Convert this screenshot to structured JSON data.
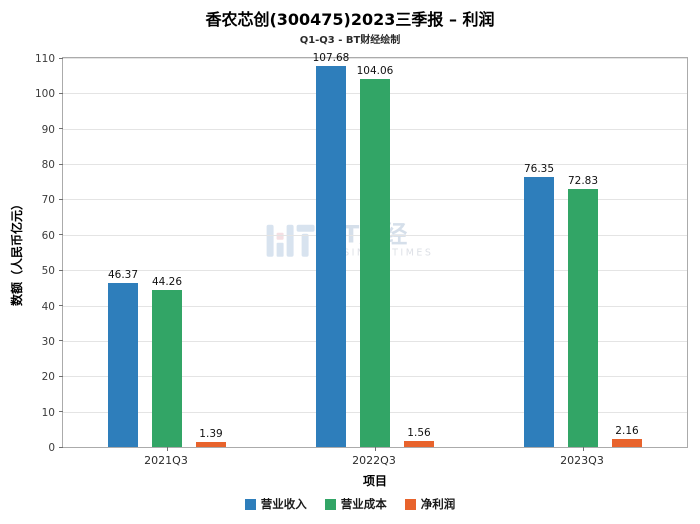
{
  "chart_data": {
    "type": "bar",
    "title": "香农芯创(300475)2023三季报 – 利润",
    "subtitle": "Q1-Q3 - BT财经绘制",
    "xlabel": "项目",
    "ylabel": "数额（人民币亿元）",
    "ylim": [
      0,
      110
    ],
    "yticks": [
      0,
      10,
      20,
      30,
      40,
      50,
      60,
      70,
      80,
      90,
      100,
      110
    ],
    "grid": true,
    "legend_position": "bottom",
    "categories": [
      "2021Q3",
      "2022Q3",
      "2023Q3"
    ],
    "series": [
      {
        "name": "营业收入",
        "color": "#2e7ebb",
        "values": [
          46.37,
          107.68,
          76.35
        ]
      },
      {
        "name": "营业成本",
        "color": "#32a566",
        "values": [
          44.26,
          104.06,
          72.83
        ]
      },
      {
        "name": "净利润",
        "color": "#e8632c",
        "values": [
          1.39,
          1.56,
          2.16
        ]
      }
    ],
    "watermark": {
      "brand": "BT财经",
      "subtext": "BUSINESSTIMES"
    }
  }
}
